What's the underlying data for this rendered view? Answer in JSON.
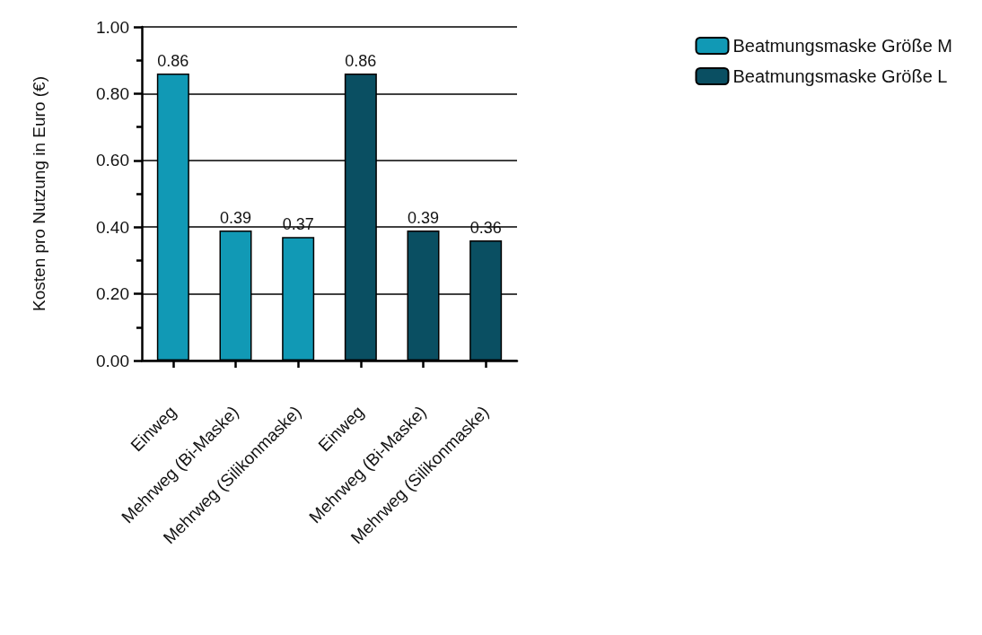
{
  "chart_data": {
    "type": "bar",
    "ylabel": "Kosten pro Nutzung in Euro (€)",
    "categories": [
      "Einweg",
      "Mehrweg (Bi-Maske)",
      "Mehrweg (Silikonmaske)",
      "Einweg",
      "Mehrweg (Bi-Maske)",
      "Mehrweg (Silikonmaske)"
    ],
    "series": [
      {
        "name": "Beatmungsmaske Größe M",
        "color": "#1199b5",
        "values": [
          0.86,
          0.39,
          0.37,
          null,
          null,
          null
        ]
      },
      {
        "name": "Beatmungsmaske Größe L",
        "color": "#0a4f62",
        "values": [
          null,
          null,
          null,
          0.86,
          0.39,
          0.36
        ]
      }
    ],
    "ylim": [
      0,
      1
    ],
    "yticks": [
      {
        "value": 0,
        "label": "0.00"
      },
      {
        "value": 0.2,
        "label": "0.20"
      },
      {
        "value": 0.4,
        "label": "0.40"
      },
      {
        "value": 0.6,
        "label": "0.60"
      },
      {
        "value": 0.8,
        "label": "0.80"
      },
      {
        "value": 1,
        "label": "1.00"
      }
    ],
    "grid": "y",
    "data_labels": true,
    "legend": "top right"
  }
}
